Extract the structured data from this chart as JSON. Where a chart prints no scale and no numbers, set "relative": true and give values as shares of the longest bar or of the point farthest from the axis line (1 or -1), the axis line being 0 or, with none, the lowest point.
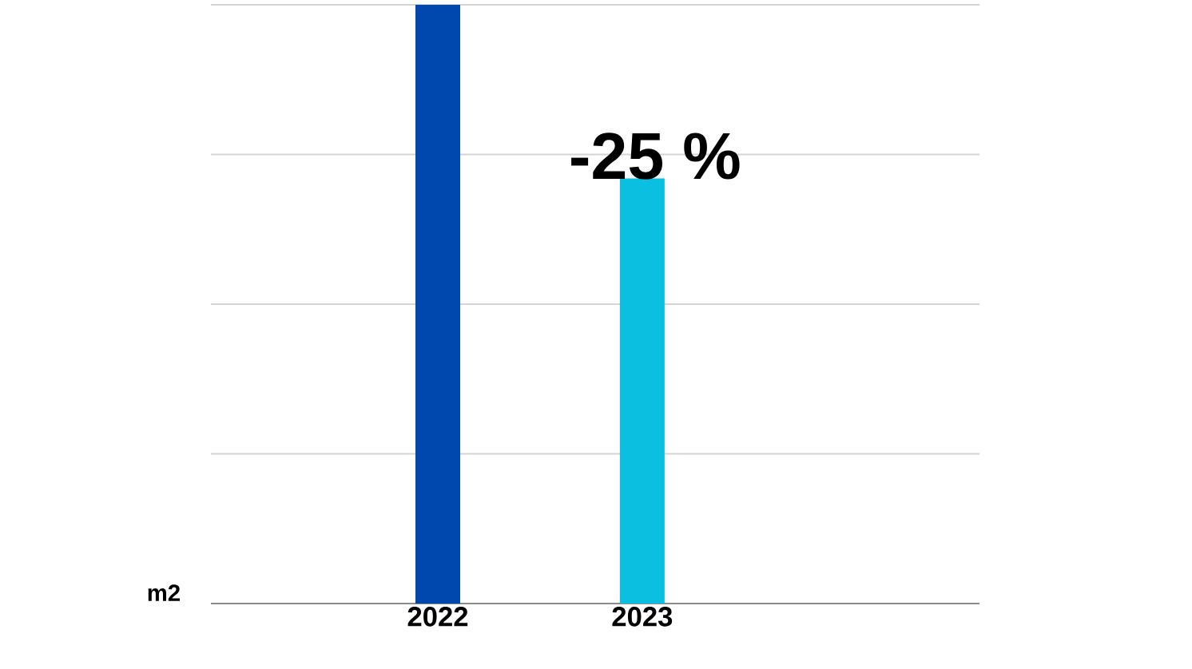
{
  "chart_data": {
    "type": "bar",
    "relative": true,
    "categories": [
      "2022",
      "2023"
    ],
    "values": [
      1,
      0.71
    ],
    "colors": [
      "#0048ad",
      "#0abfdf"
    ],
    "grid": "y",
    "annotations": [
      {
        "text": "-25 %",
        "x": "2023",
        "y": 0.71
      },
      "m2"
    ]
  }
}
